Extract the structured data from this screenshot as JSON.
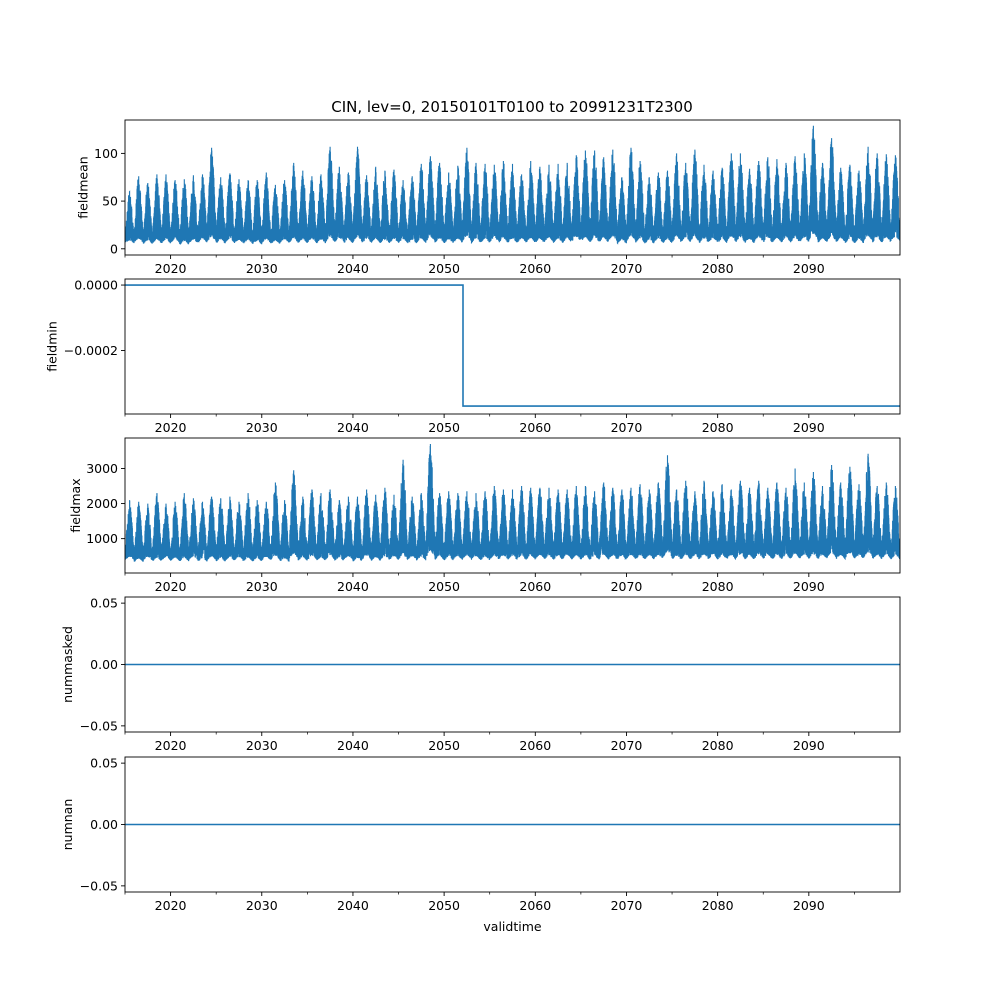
{
  "chart_data": [
    {
      "type": "line",
      "title": "CIN, lev=0, 20150101T0100 to 20991231T2300",
      "ylabel": "fieldmean",
      "xlabel": "",
      "xlim": [
        2015.0,
        2100.0
      ],
      "ylim": [
        -6.5,
        135
      ],
      "xticks": [
        "2020",
        "2030",
        "2040",
        "2050",
        "2060",
        "2070",
        "2080",
        "2090"
      ],
      "yticks": [
        {
          "v": 0,
          "label": "0"
        },
        {
          "v": 50,
          "label": "50"
        },
        {
          "v": 100,
          "label": "100"
        }
      ],
      "color": "#1f77b4",
      "years_start": 2015,
      "yearly_peak": [
        60,
        76,
        69,
        78,
        78,
        72,
        73,
        77,
        78,
        106,
        75,
        79,
        73,
        72,
        72,
        80,
        67,
        72,
        90,
        82,
        76,
        78,
        107,
        86,
        80,
        107,
        77,
        86,
        82,
        83,
        72,
        76,
        89,
        97,
        90,
        80,
        87,
        106,
        90,
        89,
        88,
        92,
        89,
        78,
        92,
        86,
        88,
        89,
        90,
        98,
        103,
        103,
        96,
        104,
        75,
        106,
        92,
        75,
        80,
        82,
        100,
        90,
        104,
        88,
        82,
        85,
        100,
        100,
        84,
        92,
        96,
        94,
        90,
        97,
        100,
        129,
        90,
        116,
        85,
        88,
        82,
        107,
        100,
        99,
        98
      ],
      "yearly_trough": [
        3,
        3,
        2,
        2,
        2,
        3,
        1,
        2,
        3,
        2,
        2,
        3,
        2,
        2,
        1,
        2,
        2,
        3,
        2,
        2,
        3,
        2,
        2,
        3,
        2,
        2,
        3,
        2,
        2,
        2,
        3,
        2,
        2,
        3,
        2,
        2,
        2,
        3,
        2,
        2,
        3,
        2,
        2,
        3,
        2,
        2,
        3,
        2,
        2,
        3,
        2,
        2,
        2,
        3,
        2,
        3,
        2,
        2,
        3,
        2,
        2,
        3,
        2,
        2,
        3,
        2,
        3,
        2,
        2,
        3,
        2,
        2,
        3,
        2,
        2,
        3,
        2,
        2,
        3,
        2,
        2,
        3,
        2,
        2,
        3
      ]
    },
    {
      "type": "line",
      "ylabel": "fieldmin",
      "xlim": [
        2015.0,
        2100.0
      ],
      "ylim": [
        -0.000394,
        1.85e-05
      ],
      "xticks": [
        "2020",
        "2030",
        "2040",
        "2050",
        "2060",
        "2070",
        "2080",
        "2090"
      ],
      "yticks": [
        {
          "v": 0,
          "label": "0.0000"
        },
        {
          "v": -0.0002,
          "label": "−0.0002"
        }
      ],
      "color": "#1f77b4",
      "x": [
        2015.0,
        2052.07,
        2052.07,
        2100.0
      ],
      "y": [
        0,
        0,
        -0.00037,
        -0.00037
      ]
    },
    {
      "type": "line",
      "ylabel": "fieldmax",
      "xlim": [
        2015.0,
        2100.0
      ],
      "ylim": [
        20,
        3870
      ],
      "xticks": [
        "2020",
        "2030",
        "2040",
        "2050",
        "2060",
        "2070",
        "2080",
        "2090"
      ],
      "yticks": [
        {
          "v": 1000,
          "label": "1000"
        },
        {
          "v": 2000,
          "label": "2000"
        },
        {
          "v": 3000,
          "label": "3000"
        }
      ],
      "color": "#1f77b4",
      "years_start": 2015,
      "yearly_peak": [
        2100,
        2050,
        2000,
        2300,
        2000,
        2050,
        2300,
        2150,
        2050,
        2200,
        2150,
        2200,
        2050,
        2300,
        2100,
        2050,
        2600,
        2100,
        2950,
        2200,
        2400,
        2300,
        2400,
        2100,
        2200,
        2200,
        2400,
        2250,
        2450,
        2250,
        3250,
        2200,
        2300,
        3700,
        2300,
        2350,
        2300,
        2350,
        2300,
        2350,
        2500,
        2400,
        2400,
        2500,
        2450,
        2450,
        2450,
        2400,
        2400,
        2500,
        2500,
        2350,
        2600,
        2450,
        2400,
        2450,
        2550,
        2400,
        2600,
        3380,
        2400,
        2650,
        2350,
        2650,
        2350,
        2550,
        2400,
        2650,
        2450,
        2650,
        2450,
        2600,
        2450,
        3000,
        2600,
        2900,
        2500,
        3100,
        2600,
        3050,
        2550,
        3420,
        2500,
        2600,
        2500
      ],
      "yearly_trough": [
        300,
        250,
        300,
        250,
        300,
        280,
        250,
        300,
        260,
        300,
        250,
        280,
        300,
        250,
        260,
        300,
        280,
        250,
        300,
        270,
        300,
        260,
        300,
        280,
        300,
        250,
        300,
        270,
        280,
        300,
        260,
        300,
        280,
        300,
        300,
        280,
        300,
        320,
        300,
        280,
        300,
        310,
        300,
        290,
        300,
        320,
        300,
        300,
        320,
        300,
        290,
        300,
        310,
        300,
        300,
        320,
        300,
        310,
        300,
        320,
        300,
        300,
        310,
        300,
        320,
        300,
        310,
        320,
        300,
        310,
        320,
        300,
        310,
        300,
        320,
        300,
        310,
        320,
        300,
        310,
        320,
        300,
        310,
        320,
        300
      ]
    },
    {
      "type": "line",
      "ylabel": "nummasked",
      "xlim": [
        2015.0,
        2100.0
      ],
      "ylim": [
        -0.055,
        0.055
      ],
      "xticks": [
        "2020",
        "2030",
        "2040",
        "2050",
        "2060",
        "2070",
        "2080",
        "2090"
      ],
      "yticks": [
        {
          "v": 0.05,
          "label": "0.05"
        },
        {
          "v": 0,
          "label": "0.00"
        },
        {
          "v": -0.05,
          "label": "−0.05"
        }
      ],
      "color": "#1f77b4",
      "x": [
        2015.0,
        2100.0
      ],
      "y": [
        0,
        0
      ]
    },
    {
      "type": "line",
      "ylabel": "numnan",
      "xlabel": "validtime",
      "xlim": [
        2015.0,
        2100.0
      ],
      "ylim": [
        -0.055,
        0.055
      ],
      "xticks": [
        "2020",
        "2030",
        "2040",
        "2050",
        "2060",
        "2070",
        "2080",
        "2090"
      ],
      "yticks": [
        {
          "v": 0.05,
          "label": "0.05"
        },
        {
          "v": 0,
          "label": "0.00"
        },
        {
          "v": -0.05,
          "label": "−0.05"
        }
      ],
      "color": "#1f77b4",
      "x": [
        2015.0,
        2100.0
      ],
      "y": [
        0,
        0
      ]
    }
  ]
}
